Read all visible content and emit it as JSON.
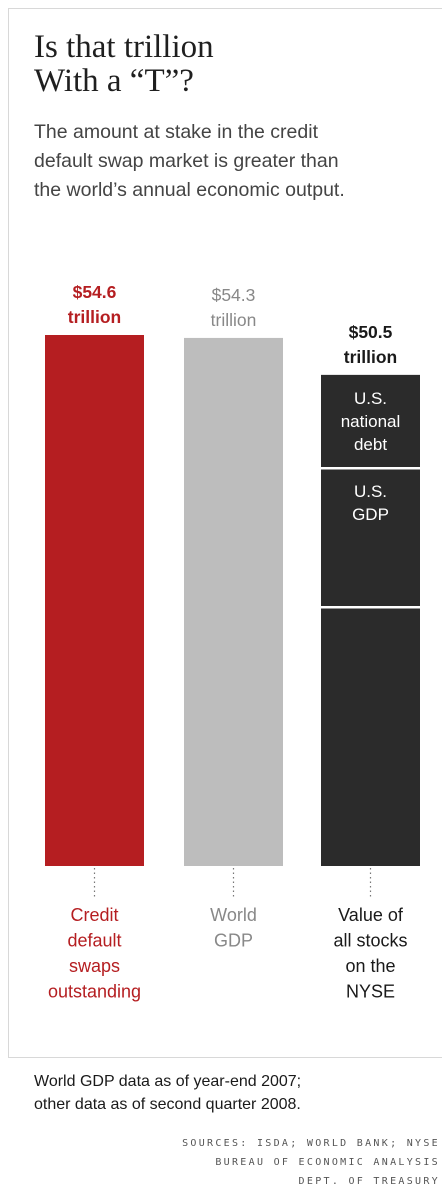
{
  "title_lines": [
    "Is that trillion",
    "With a “T”?"
  ],
  "subtitle_lines": [
    "The amount at stake in the credit",
    "default swap market is greater than",
    "the world’s annual economic output."
  ],
  "footnote_lines": [
    "World GDP data as of year-end 2007;",
    "other data as of second quarter 2008."
  ],
  "sources_lines": [
    "SOURCES: ISDA; WORLD BANK; NYSE",
    "BUREAU OF ECONOMIC ANALYSIS",
    "DEPT. OF TREASURY"
  ],
  "colors": {
    "cds": "#b51e21",
    "world_gdp": "#bdbdbd",
    "nyse": "#2b2b2b",
    "world_gdp_text": "#888888",
    "nyse_text": "#1a1a1a"
  },
  "chart_data": {
    "type": "bar",
    "unit": "trillion",
    "ylim": [
      0,
      54.6
    ],
    "categories": [
      {
        "label_lines": [
          "Credit",
          "default",
          "swaps",
          "outstanding"
        ],
        "value": 54.6,
        "value_label_lines": [
          "$54.6",
          "trillion"
        ],
        "color_key": "cds"
      },
      {
        "label_lines": [
          "World",
          "GDP"
        ],
        "value": 54.3,
        "value_label_lines": [
          "$54.3",
          "trillion"
        ],
        "color_key": "world_gdp"
      },
      {
        "label_lines": [
          "Value of",
          "all stocks",
          "on the",
          "NYSE"
        ],
        "value": 50.5,
        "value_label_lines": [
          "$50.5",
          "trillion"
        ],
        "color_key": "nyse",
        "segments": [
          {
            "label_lines": [
              "U.S.",
              "national",
              "debt"
            ],
            "value": 9.6
          },
          {
            "label_lines": [
              "U.S.",
              "GDP"
            ],
            "value": 14.3
          },
          {
            "label_lines": [],
            "value": 26.6
          }
        ]
      }
    ]
  }
}
